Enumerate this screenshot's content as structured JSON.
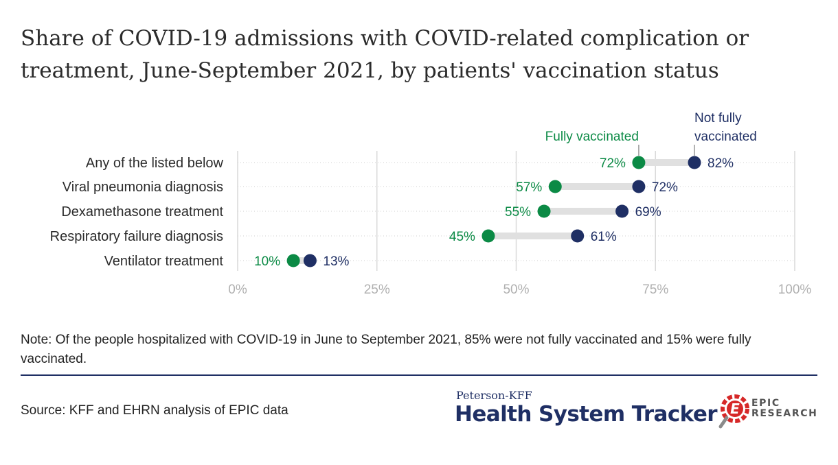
{
  "title": "Share of COVID-19 admissions with COVID-related complication or treatment, June-September 2021, by patients' vaccination status",
  "note": "Note: Of the people hospitalized with COVID-19 in June to September 2021, 85% were not fully vaccinated and 15% were fully vaccinated.",
  "source": "Source: KFF and EHRN analysis of EPIC data",
  "branding": {
    "small": "Peterson-KFF",
    "big": "Health System Tracker",
    "epic_line1": "EPIC",
    "epic_line2": "RESEARCH"
  },
  "colors": {
    "fully_vaccinated": "#0b8a45",
    "not_fully_vaccinated": "#1f2f64",
    "connector": "#e0e0e0",
    "axis_text": "#b0b0b0",
    "grid": "#d9d9d9",
    "epic_red": "#d62828",
    "epic_gray": "#8a8a8a"
  },
  "chart_data": {
    "type": "dot-plot",
    "categories": [
      "Any of the listed below",
      "Viral pneumonia diagnosis",
      "Dexamethasone treatment",
      "Respiratory failure diagnosis",
      "Ventilator treatment"
    ],
    "series": [
      {
        "name": "Fully vaccinated",
        "values": [
          72,
          57,
          55,
          45,
          10
        ]
      },
      {
        "name": "Not fully vaccinated",
        "values": [
          82,
          72,
          69,
          61,
          13
        ]
      }
    ],
    "legend_labels": [
      "Fully vaccinated",
      "Not fully vaccinated"
    ],
    "x_ticks": [
      0,
      25,
      50,
      75,
      100
    ],
    "x_tick_labels": [
      "0%",
      "25%",
      "50%",
      "75%",
      "100%"
    ],
    "xlim": [
      0,
      100
    ],
    "value_suffix": "%",
    "grid": true,
    "legend_placement": "top, above first row"
  }
}
